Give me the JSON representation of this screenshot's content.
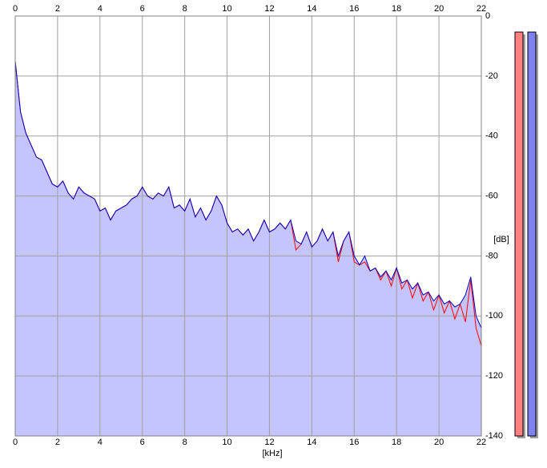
{
  "chart_data": {
    "type": "area",
    "x_label": "[kHz]",
    "y_label": "[dB]",
    "x": [
      0,
      0.25,
      0.5,
      0.75,
      1,
      1.25,
      1.5,
      1.75,
      2,
      2.25,
      2.5,
      2.75,
      3,
      3.25,
      3.5,
      3.75,
      4,
      4.25,
      4.5,
      4.75,
      5,
      5.25,
      5.5,
      5.75,
      6,
      6.25,
      6.5,
      6.75,
      7,
      7.25,
      7.5,
      7.75,
      8,
      8.25,
      8.5,
      8.75,
      9,
      9.25,
      9.5,
      9.75,
      10,
      10.25,
      10.5,
      10.75,
      11,
      11.25,
      11.5,
      11.75,
      12,
      12.25,
      12.5,
      12.75,
      13,
      13.25,
      13.5,
      13.75,
      14,
      14.25,
      14.5,
      14.75,
      15,
      15.25,
      15.5,
      15.75,
      16,
      16.25,
      16.5,
      16.75,
      17,
      17.25,
      17.5,
      17.75,
      18,
      18.25,
      18.5,
      18.75,
      19,
      19.25,
      19.5,
      19.75,
      20,
      20.25,
      20.5,
      20.75,
      21,
      21.25,
      21.5,
      21.75,
      22
    ],
    "series": [
      {
        "color": "#ff0000",
        "values": [
          -15,
          -32,
          -39,
          -43,
          -47,
          -48,
          -52,
          -56,
          -57,
          -55,
          -59,
          -61,
          -57,
          -59,
          -60,
          -61,
          -65,
          -64,
          -68,
          -65,
          -64,
          -63,
          -61,
          -60,
          -57,
          -60,
          -61,
          -59,
          -60,
          -57,
          -64,
          -63,
          -65,
          -61,
          -67,
          -64,
          -68,
          -65,
          -60,
          -63,
          -69,
          -72,
          -71,
          -73,
          -71,
          -75,
          -72,
          -68,
          -72,
          -71,
          -69,
          -71,
          -68,
          -78,
          -76,
          -72,
          -77,
          -75,
          -71,
          -75,
          -72,
          -82,
          -75,
          -72,
          -82,
          -83,
          -82,
          -85,
          -84,
          -88,
          -85,
          -90,
          -84,
          -91,
          -88,
          -94,
          -89,
          -95,
          -92,
          -98,
          -93,
          -99,
          -95,
          -101,
          -96,
          -102,
          -88,
          -104,
          -110
        ]
      },
      {
        "color": "#0000c0",
        "values": [
          -15,
          -32,
          -39,
          -43,
          -47,
          -48,
          -52,
          -56,
          -57,
          -55,
          -59,
          -61,
          -57,
          -59,
          -60,
          -61,
          -65,
          -64,
          -68,
          -65,
          -64,
          -63,
          -61,
          -60,
          -57,
          -60,
          -61,
          -59,
          -60,
          -57,
          -64,
          -63,
          -65,
          -61,
          -67,
          -64,
          -68,
          -65,
          -60,
          -63,
          -69,
          -72,
          -71,
          -73,
          -71,
          -75,
          -72,
          -68,
          -72,
          -71,
          -69,
          -71,
          -68,
          -75,
          -76,
          -72,
          -77,
          -75,
          -71,
          -75,
          -72,
          -80,
          -75,
          -72,
          -80,
          -83,
          -80,
          -85,
          -84,
          -87,
          -85,
          -88,
          -84,
          -89,
          -88,
          -91,
          -89,
          -93,
          -92,
          -95,
          -93,
          -96,
          -95,
          -97,
          -96,
          -93,
          -87,
          -100,
          -104
        ]
      }
    ],
    "fill_color": "#c4c4ff",
    "xlim": [
      0,
      22
    ],
    "xticks": [
      0,
      2,
      4,
      6,
      8,
      10,
      12,
      14,
      16,
      18,
      20,
      22
    ],
    "ylim": [
      -140,
      0
    ],
    "yticks": [
      0,
      -20,
      -40,
      -60,
      -80,
      -100,
      -120,
      -140
    ],
    "grid": true
  }
}
